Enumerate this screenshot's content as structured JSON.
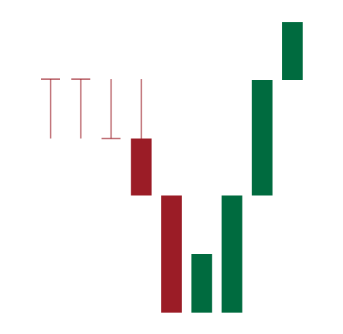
{
  "chart_data": {
    "type": "candlestick",
    "up_color": "#006b3f",
    "down_color": "#9b1c26",
    "ylim": [
      0,
      400
    ],
    "open": [
      300,
      300,
      225,
      225,
      153,
      5,
      5,
      153,
      299
    ],
    "high": [
      300,
      300,
      300,
      300,
      153,
      79,
      153,
      299,
      372
    ],
    "low": [
      225,
      225,
      225,
      153,
      5,
      5,
      5,
      153,
      299
    ],
    "close": [
      300,
      300,
      225,
      153,
      5,
      79,
      153,
      299,
      372
    ]
  }
}
